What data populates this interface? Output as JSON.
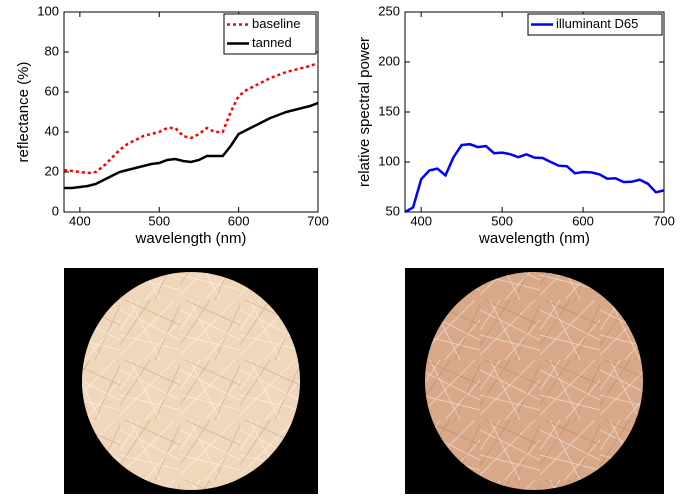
{
  "chart_data": [
    {
      "type": "line",
      "x": [
        380,
        390,
        400,
        410,
        420,
        430,
        440,
        450,
        460,
        470,
        480,
        490,
        500,
        510,
        520,
        530,
        540,
        550,
        560,
        570,
        580,
        590,
        600,
        610,
        620,
        630,
        640,
        650,
        660,
        670,
        680,
        690,
        700
      ],
      "series": [
        {
          "name": "baseline",
          "color": "#ff0000",
          "linestyle": "dashed",
          "values": [
            21,
            20.5,
            20,
            19.5,
            20,
            23,
            27,
            31,
            34,
            36,
            38,
            39,
            40,
            42,
            42,
            38,
            37,
            39,
            42,
            40,
            40,
            50,
            58,
            61,
            63,
            65,
            67,
            68.5,
            70,
            71,
            72,
            73,
            74.5
          ]
        },
        {
          "name": "tanned",
          "color": "#000000",
          "linestyle": "solid",
          "values": [
            12,
            12,
            12.5,
            13,
            14,
            16,
            18,
            20,
            21,
            22,
            23,
            24,
            24.5,
            26,
            26.5,
            25.5,
            25,
            26,
            28,
            28,
            28,
            33,
            39,
            41,
            43,
            45,
            47,
            48.5,
            50,
            51,
            52,
            53,
            54.5
          ]
        }
      ],
      "xlabel": "wavelength (nm)",
      "ylabel": "reflectance (%)",
      "xlim": [
        380,
        700
      ],
      "xticks": [
        400,
        500,
        600,
        700
      ],
      "ylim": [
        0,
        100
      ],
      "yticks": [
        0,
        20,
        40,
        60,
        80,
        100
      ],
      "legend": "upper right"
    },
    {
      "type": "line",
      "x": [
        380,
        390,
        400,
        410,
        420,
        430,
        440,
        450,
        460,
        470,
        480,
        490,
        500,
        510,
        520,
        530,
        540,
        550,
        560,
        570,
        580,
        590,
        600,
        610,
        620,
        630,
        640,
        650,
        660,
        670,
        680,
        690,
        700
      ],
      "series": [
        {
          "name": "illuminant D65",
          "color": "#0000ff",
          "linestyle": "solid",
          "values": [
            50,
            54.6,
            82.8,
            91.5,
            93.4,
            86.7,
            104.9,
            117,
            117.8,
            114.9,
            115.9,
            108.8,
            109.4,
            107.8,
            104.8,
            107.7,
            104.4,
            104,
            100,
            96.3,
            95.8,
            88.7,
            90,
            89.6,
            87.7,
            83.3,
            83.7,
            80,
            80.2,
            82.3,
            78.3,
            69.7,
            71.6
          ]
        }
      ],
      "xlabel": "wavelength (nm)",
      "ylabel": "relative spectral power",
      "xlim": [
        380,
        700
      ],
      "xticks": [
        400,
        500,
        600,
        700
      ],
      "ylim": [
        50,
        250
      ],
      "yticks": [
        50,
        100,
        150,
        200,
        250
      ],
      "legend": "upper right"
    }
  ]
}
